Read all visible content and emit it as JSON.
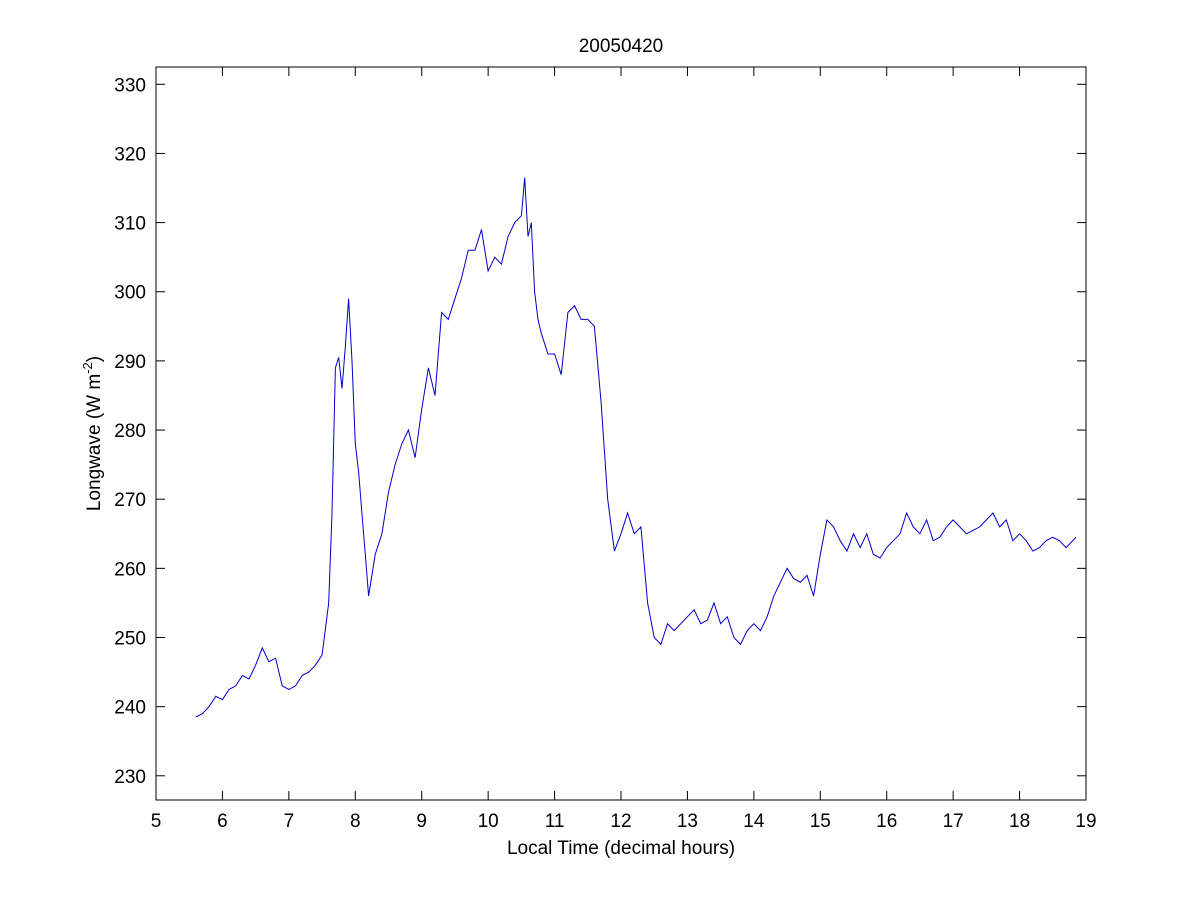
{
  "chart_data": {
    "type": "line",
    "title": "20050420",
    "xlabel": "Local Time (decimal hours)",
    "ylabel_main": "Longwave (W m",
    "ylabel_sup": "-2",
    "ylabel_close": ")",
    "xlim": [
      5,
      19
    ],
    "ylim": [
      226.5,
      332.5
    ],
    "xticks": [
      5,
      6,
      7,
      8,
      9,
      10,
      11,
      12,
      13,
      14,
      15,
      16,
      17,
      18,
      19
    ],
    "yticks": [
      230,
      240,
      250,
      260,
      270,
      280,
      290,
      300,
      310,
      320,
      330
    ],
    "grid": false,
    "line_color": "#0000cc",
    "series": [
      {
        "x": [
          5.6,
          5.7,
          5.8,
          5.9,
          6.0,
          6.1,
          6.2,
          6.3,
          6.4,
          6.5,
          6.6,
          6.7,
          6.8,
          6.9,
          7.0,
          7.1,
          7.2,
          7.3,
          7.4,
          7.5,
          7.6,
          7.65,
          7.7,
          7.75,
          7.8,
          7.85,
          7.9,
          7.95,
          8.0,
          8.05,
          8.1,
          8.15,
          8.2,
          8.3,
          8.4,
          8.5,
          8.6,
          8.7,
          8.8,
          8.9,
          9.0,
          9.1,
          9.2,
          9.3,
          9.4,
          9.5,
          9.6,
          9.7,
          9.8,
          9.9,
          10.0,
          10.1,
          10.2,
          10.3,
          10.4,
          10.5,
          10.55,
          10.6,
          10.65,
          10.7,
          10.75,
          10.8,
          10.9,
          11.0,
          11.1,
          11.2,
          11.3,
          11.4,
          11.5,
          11.6,
          11.7,
          11.8,
          11.9,
          12.0,
          12.1,
          12.2,
          12.3,
          12.4,
          12.5,
          12.6,
          12.7,
          12.8,
          12.9,
          13.0,
          13.1,
          13.2,
          13.3,
          13.4,
          13.5,
          13.6,
          13.7,
          13.8,
          13.9,
          14.0,
          14.1,
          14.2,
          14.3,
          14.4,
          14.5,
          14.6,
          14.7,
          14.8,
          14.9,
          15.0,
          15.1,
          15.2,
          15.3,
          15.4,
          15.5,
          15.6,
          15.7,
          15.8,
          15.9,
          16.0,
          16.1,
          16.2,
          16.3,
          16.4,
          16.5,
          16.6,
          16.7,
          16.8,
          16.9,
          17.0,
          17.1,
          17.2,
          17.3,
          17.4,
          17.5,
          17.6,
          17.7,
          17.8,
          17.9,
          18.0,
          18.1,
          18.2,
          18.3,
          18.4,
          18.5,
          18.6,
          18.7,
          18.8,
          18.85
        ],
        "y": [
          238.5,
          239.0,
          240.0,
          241.5,
          241.0,
          242.5,
          243.0,
          244.5,
          244.0,
          246.0,
          248.5,
          246.5,
          247.0,
          243.0,
          242.5,
          243.0,
          244.5,
          245.0,
          246.0,
          247.5,
          255.0,
          268.0,
          289.0,
          290.5,
          286.0,
          292.0,
          299.0,
          290.0,
          278.0,
          274.0,
          268.0,
          262.0,
          256.0,
          262.0,
          265.0,
          271.0,
          275.0,
          278.0,
          280.0,
          276.0,
          283.0,
          289.0,
          285.0,
          297.0,
          296.0,
          299.0,
          302.0,
          306.0,
          306.0,
          309.0,
          303.0,
          305.0,
          304.0,
          308.0,
          310.0,
          311.0,
          316.5,
          308.0,
          310.0,
          300.0,
          296.0,
          294.0,
          291.0,
          291.0,
          288.0,
          297.0,
          298.0,
          296.0,
          296.0,
          295.0,
          284.0,
          270.0,
          262.5,
          265.0,
          268.0,
          265.0,
          266.0,
          255.0,
          250.0,
          249.0,
          252.0,
          251.0,
          252.0,
          253.0,
          254.0,
          252.0,
          252.5,
          255.0,
          252.0,
          253.0,
          250.0,
          249.0,
          251.0,
          252.0,
          251.0,
          253.0,
          256.0,
          258.0,
          260.0,
          258.5,
          258.0,
          259.0,
          256.0,
          262.0,
          267.0,
          266.0,
          264.0,
          262.5,
          265.0,
          263.0,
          265.0,
          262.0,
          261.5,
          263.0,
          264.0,
          265.0,
          268.0,
          266.0,
          265.0,
          267.0,
          264.0,
          264.5,
          266.0,
          267.0,
          266.0,
          265.0,
          265.5,
          266.0,
          267.0,
          268.0,
          266.0,
          267.0,
          264.0,
          265.0,
          264.0,
          262.5,
          263.0,
          264.0,
          264.5,
          264.0,
          263.0,
          264.0,
          264.5
        ]
      }
    ]
  }
}
